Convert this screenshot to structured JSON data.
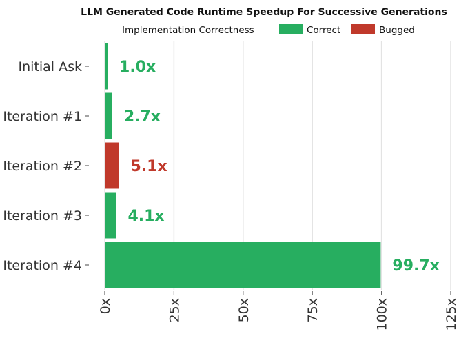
{
  "chart_data": {
    "type": "bar",
    "orientation": "horizontal",
    "title": "LLM Generated Code Runtime Speedup For Successive Generations",
    "legend": {
      "title": "Implementation Correctness",
      "position": "top",
      "entries": [
        {
          "label": "Correct",
          "color": "#27ae60"
        },
        {
          "label": "Bugged",
          "color": "#c0392b"
        }
      ]
    },
    "categories": [
      "Initial Ask",
      "Iteration #1",
      "Iteration #2",
      "Iteration #3",
      "Iteration #4"
    ],
    "values": [
      1.0,
      2.7,
      5.1,
      4.1,
      99.7
    ],
    "status": [
      "Correct",
      "Correct",
      "Bugged",
      "Correct",
      "Correct"
    ],
    "data_labels": [
      "1.0x",
      "2.7x",
      "5.1x",
      "4.1x",
      "99.7x"
    ],
    "xlim": [
      0,
      125
    ],
    "xticks": [
      {
        "value": 0,
        "label": "0x"
      },
      {
        "value": 25,
        "label": "25x"
      },
      {
        "value": 50,
        "label": "50x"
      },
      {
        "value": 75,
        "label": "75x"
      },
      {
        "value": 100,
        "label": "100x"
      },
      {
        "value": 125,
        "label": "125x"
      }
    ],
    "xlabel": "",
    "ylabel": "",
    "grid": "vertical"
  }
}
